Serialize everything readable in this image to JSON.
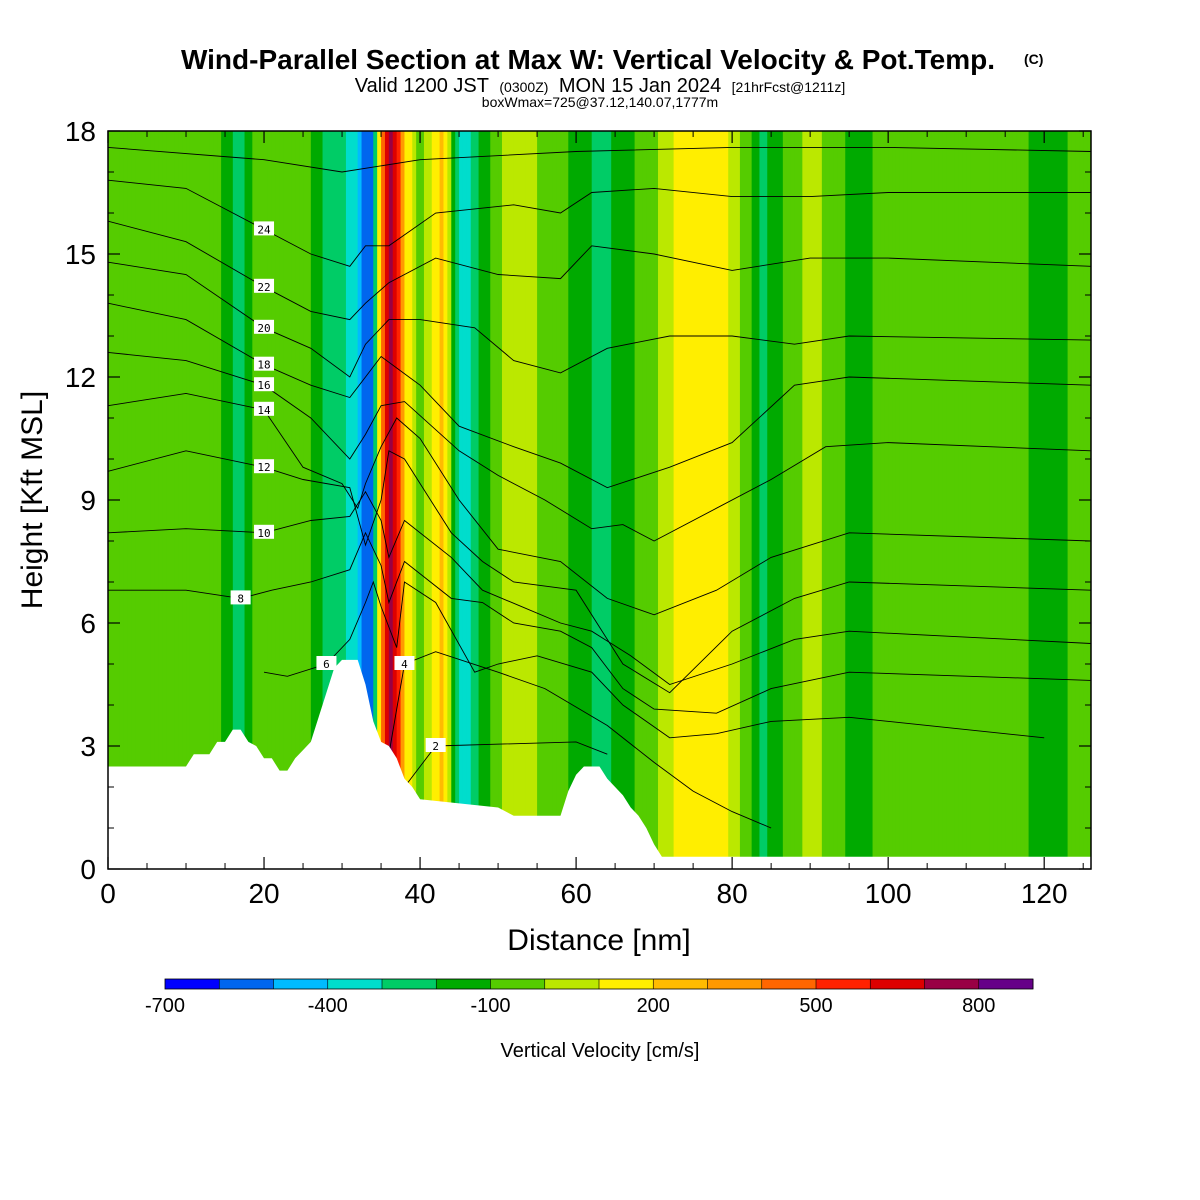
{
  "title": "Wind-Parallel Section at Max W: Vertical Velocity & Pot.Temp.",
  "title_mark": "(C)",
  "subtitle_parts": [
    "Valid 1200 JST",
    "(0300Z)",
    "MON 15 Jan 2024",
    "[21hrFcst@1211z]"
  ],
  "subtitle2": "boxWmax=725@37.12,140.07,1777m",
  "chart_data": {
    "type": "heatmap",
    "xlabel": "Distance [nm]",
    "ylabel": "Height [Kft MSL]",
    "xlim": [
      0,
      126
    ],
    "ylim": [
      0,
      18
    ],
    "xticks": [
      0,
      20,
      40,
      60,
      80,
      100,
      120
    ],
    "yticks": [
      0,
      3,
      6,
      9,
      12,
      15,
      18
    ],
    "colorbar": {
      "label": "Vertical Velocity [cm/s]",
      "min": -700,
      "max": 900,
      "step": 100,
      "tick_values": [
        -700,
        -400,
        -100,
        200,
        500,
        800
      ],
      "colors": [
        "#0000ff",
        "#0066ee",
        "#00bbff",
        "#00ddcc",
        "#00cc66",
        "#00aa00",
        "#55cc00",
        "#bbe800",
        "#ffee00",
        "#ffbb00",
        "#ff9900",
        "#ff6600",
        "#ff2200",
        "#dd0000",
        "#990044",
        "#660088"
      ]
    },
    "terrain_kft": [
      [
        0,
        2.5
      ],
      [
        10,
        2.5
      ],
      [
        11,
        2.8
      ],
      [
        13,
        2.8
      ],
      [
        14,
        3.1
      ],
      [
        15,
        3.1
      ],
      [
        16,
        3.4
      ],
      [
        17,
        3.4
      ],
      [
        18,
        3.1
      ],
      [
        19,
        3.0
      ],
      [
        20,
        2.7
      ],
      [
        21,
        2.7
      ],
      [
        22,
        2.4
      ],
      [
        23,
        2.4
      ],
      [
        24,
        2.7
      ],
      [
        25,
        2.9
      ],
      [
        26,
        3.1
      ],
      [
        27,
        3.7
      ],
      [
        28,
        4.3
      ],
      [
        29,
        4.9
      ],
      [
        30,
        5.1
      ],
      [
        32,
        5.1
      ],
      [
        33,
        4.5
      ],
      [
        34,
        3.6
      ],
      [
        35,
        3.1
      ],
      [
        36,
        3.0
      ],
      [
        37,
        2.7
      ],
      [
        38,
        2.2
      ],
      [
        39,
        2.0
      ],
      [
        40,
        1.7
      ],
      [
        50,
        1.5
      ],
      [
        52,
        1.3
      ],
      [
        58,
        1.3
      ],
      [
        59,
        1.9
      ],
      [
        60,
        2.3
      ],
      [
        61,
        2.5
      ],
      [
        63,
        2.5
      ],
      [
        64,
        2.2
      ],
      [
        65,
        2.0
      ],
      [
        66,
        1.8
      ],
      [
        67,
        1.5
      ],
      [
        68,
        1.3
      ],
      [
        69,
        1.0
      ],
      [
        70,
        0.6
      ],
      [
        71,
        0.3
      ],
      [
        126,
        0.3
      ]
    ],
    "velocity_columns_cms": [
      [
        0,
        -100
      ],
      [
        14,
        -50
      ],
      [
        16,
        -200
      ],
      [
        17,
        -250
      ],
      [
        19,
        -60
      ],
      [
        23,
        -50
      ],
      [
        26,
        -100
      ],
      [
        28,
        -250
      ],
      [
        30,
        -250
      ],
      [
        32,
        -400
      ],
      [
        33,
        -600
      ],
      [
        34,
        -500
      ],
      [
        35,
        300
      ],
      [
        36,
        800
      ],
      [
        37,
        600
      ],
      [
        38,
        200
      ],
      [
        40,
        -60
      ],
      [
        43,
        250
      ],
      [
        44,
        -50
      ],
      [
        45,
        -350
      ],
      [
        46,
        -350
      ],
      [
        48,
        -150
      ],
      [
        52,
        80
      ],
      [
        57,
        -60
      ],
      [
        61,
        -150
      ],
      [
        63,
        -250
      ],
      [
        66,
        -150
      ],
      [
        69,
        -60
      ],
      [
        72,
        80
      ],
      [
        76,
        200
      ],
      [
        79,
        150
      ],
      [
        82,
        -60
      ],
      [
        84,
        -250
      ],
      [
        85,
        -150
      ],
      [
        88,
        -60
      ],
      [
        90,
        40
      ],
      [
        96,
        -150
      ],
      [
        100,
        -50
      ],
      [
        104,
        -60
      ],
      [
        110,
        -30
      ],
      [
        116,
        -60
      ],
      [
        120,
        -150
      ],
      [
        126,
        -50
      ]
    ],
    "theta_contours": [
      {
        "label": "2",
        "points": [
          [
            35,
            1.8
          ],
          [
            38,
            2.0
          ],
          [
            42,
            3.0
          ],
          [
            60,
            3.1
          ],
          [
            64,
            2.8
          ]
        ]
      },
      {
        "label": "4",
        "points": [
          [
            35,
            2.3
          ],
          [
            36,
            2.8
          ],
          [
            38,
            5.0
          ],
          [
            42,
            5.3
          ],
          [
            50,
            4.8
          ],
          [
            56,
            4.4
          ],
          [
            64,
            3.5
          ],
          [
            70,
            2.6
          ],
          [
            75,
            1.9
          ],
          [
            80,
            1.4
          ],
          [
            85,
            1.0
          ]
        ]
      },
      {
        "label": "6",
        "points": [
          [
            20,
            4.8
          ],
          [
            23,
            4.7
          ],
          [
            28,
            5.0
          ],
          [
            31,
            5.6
          ],
          [
            33,
            6.5
          ],
          [
            34,
            7.0
          ],
          [
            35,
            6.4
          ],
          [
            37,
            5.4
          ],
          [
            38,
            7.0
          ],
          [
            42,
            6.5
          ],
          [
            47,
            4.8
          ],
          [
            50,
            5.0
          ],
          [
            55,
            5.2
          ],
          [
            62,
            4.8
          ],
          [
            66,
            4.0
          ],
          [
            72,
            3.2
          ],
          [
            78,
            3.3
          ],
          [
            85,
            3.6
          ],
          [
            95,
            3.7
          ],
          [
            120,
            3.2
          ]
        ]
      },
      {
        "label": "8",
        "points": [
          [
            0,
            6.8
          ],
          [
            10,
            6.8
          ],
          [
            17,
            6.6
          ],
          [
            21,
            6.8
          ],
          [
            26,
            7.0
          ],
          [
            31,
            7.3
          ],
          [
            33,
            8.2
          ],
          [
            35,
            7.4
          ],
          [
            36,
            6.5
          ],
          [
            38,
            7.5
          ],
          [
            44,
            6.6
          ],
          [
            48,
            6.5
          ],
          [
            52,
            6.0
          ],
          [
            58,
            5.8
          ],
          [
            62,
            5.4
          ],
          [
            66,
            4.4
          ],
          [
            70,
            3.9
          ],
          [
            78,
            3.8
          ],
          [
            85,
            4.4
          ],
          [
            95,
            4.8
          ],
          [
            126,
            4.6
          ]
        ]
      },
      {
        "label": "10",
        "points": [
          [
            0,
            8.2
          ],
          [
            10,
            8.3
          ],
          [
            20,
            8.2
          ],
          [
            26,
            8.5
          ],
          [
            31,
            8.6
          ],
          [
            33,
            9.2
          ],
          [
            35,
            8.5
          ],
          [
            36,
            7.6
          ],
          [
            38,
            8.5
          ],
          [
            44,
            7.6
          ],
          [
            48,
            6.8
          ],
          [
            53,
            6.4
          ],
          [
            58,
            6.0
          ],
          [
            62,
            5.8
          ],
          [
            67,
            5.2
          ],
          [
            72,
            4.5
          ],
          [
            80,
            5.0
          ],
          [
            88,
            5.6
          ],
          [
            95,
            5.8
          ],
          [
            126,
            5.5
          ]
        ]
      },
      {
        "label": "12",
        "points": [
          [
            0,
            9.7
          ],
          [
            10,
            10.2
          ],
          [
            20,
            9.8
          ],
          [
            25,
            9.5
          ],
          [
            31,
            9.3
          ],
          [
            33,
            7.9
          ],
          [
            35,
            9.0
          ],
          [
            36,
            10.2
          ],
          [
            38,
            10.0
          ],
          [
            44,
            8.2
          ],
          [
            48,
            7.5
          ],
          [
            52,
            7.0
          ],
          [
            60,
            6.8
          ],
          [
            66,
            5.0
          ],
          [
            72,
            4.3
          ],
          [
            80,
            5.8
          ],
          [
            88,
            6.6
          ],
          [
            95,
            7.0
          ],
          [
            126,
            6.8
          ]
        ]
      },
      {
        "label": "14",
        "points": [
          [
            0,
            11.3
          ],
          [
            10,
            11.6
          ],
          [
            20,
            11.2
          ],
          [
            25,
            9.8
          ],
          [
            30,
            9.4
          ],
          [
            32,
            8.8
          ],
          [
            33,
            9.4
          ],
          [
            35,
            10.3
          ],
          [
            37,
            11.0
          ],
          [
            40,
            10.5
          ],
          [
            45,
            9.0
          ],
          [
            50,
            7.8
          ],
          [
            58,
            7.5
          ],
          [
            64,
            6.6
          ],
          [
            70,
            6.2
          ],
          [
            78,
            6.8
          ],
          [
            85,
            7.6
          ],
          [
            95,
            8.2
          ],
          [
            126,
            8.0
          ]
        ]
      },
      {
        "label": "16",
        "points": [
          [
            0,
            12.6
          ],
          [
            10,
            12.4
          ],
          [
            20,
            11.8
          ],
          [
            26,
            11.0
          ],
          [
            31,
            10.0
          ],
          [
            33,
            10.6
          ],
          [
            35,
            11.3
          ],
          [
            38,
            11.4
          ],
          [
            45,
            10.2
          ],
          [
            50,
            9.6
          ],
          [
            56,
            9.0
          ],
          [
            62,
            8.3
          ],
          [
            66,
            8.4
          ],
          [
            70,
            8.0
          ],
          [
            78,
            8.8
          ],
          [
            85,
            9.5
          ],
          [
            92,
            10.3
          ],
          [
            100,
            10.4
          ],
          [
            126,
            10.2
          ]
        ]
      },
      {
        "label": "18",
        "points": [
          [
            0,
            13.8
          ],
          [
            10,
            13.4
          ],
          [
            20,
            12.3
          ],
          [
            26,
            11.8
          ],
          [
            31,
            11.5
          ],
          [
            33,
            12.0
          ],
          [
            35,
            12.5
          ],
          [
            40,
            11.8
          ],
          [
            45,
            10.8
          ],
          [
            52,
            10.3
          ],
          [
            58,
            9.9
          ],
          [
            64,
            9.3
          ],
          [
            72,
            9.8
          ],
          [
            80,
            10.4
          ],
          [
            88,
            11.8
          ],
          [
            95,
            12.0
          ],
          [
            126,
            11.8
          ]
        ]
      },
      {
        "label": "20",
        "points": [
          [
            0,
            14.8
          ],
          [
            10,
            14.5
          ],
          [
            20,
            13.2
          ],
          [
            26,
            12.7
          ],
          [
            31,
            12.0
          ],
          [
            33,
            12.8
          ],
          [
            36,
            13.4
          ],
          [
            40,
            13.4
          ],
          [
            47,
            13.2
          ],
          [
            52,
            12.4
          ],
          [
            58,
            12.1
          ],
          [
            64,
            12.7
          ],
          [
            72,
            13.0
          ],
          [
            80,
            13.0
          ],
          [
            88,
            12.8
          ],
          [
            95,
            13.0
          ],
          [
            126,
            12.9
          ]
        ]
      },
      {
        "label": "22",
        "points": [
          [
            0,
            15.8
          ],
          [
            10,
            15.3
          ],
          [
            20,
            14.2
          ],
          [
            26,
            13.6
          ],
          [
            31,
            13.4
          ],
          [
            33,
            13.8
          ],
          [
            36,
            14.3
          ],
          [
            42,
            14.9
          ],
          [
            50,
            14.5
          ],
          [
            58,
            14.4
          ],
          [
            62,
            15.2
          ],
          [
            70,
            15.0
          ],
          [
            80,
            14.6
          ],
          [
            90,
            14.9
          ],
          [
            100,
            14.9
          ],
          [
            126,
            14.7
          ]
        ]
      },
      {
        "label": "24",
        "points": [
          [
            0,
            16.8
          ],
          [
            10,
            16.6
          ],
          [
            20,
            15.6
          ],
          [
            26,
            15.0
          ],
          [
            31,
            14.7
          ],
          [
            33,
            15.2
          ],
          [
            36,
            15.2
          ],
          [
            42,
            16.0
          ],
          [
            52,
            16.2
          ],
          [
            58,
            16.0
          ],
          [
            62,
            16.5
          ],
          [
            70,
            16.6
          ],
          [
            80,
            16.4
          ],
          [
            90,
            16.4
          ],
          [
            100,
            16.5
          ],
          [
            126,
            16.5
          ]
        ]
      },
      {
        "label": "",
        "points": [
          [
            0,
            17.6
          ],
          [
            20,
            17.3
          ],
          [
            30,
            17.0
          ],
          [
            40,
            17.3
          ],
          [
            60,
            17.5
          ],
          [
            80,
            17.6
          ],
          [
            100,
            17.6
          ],
          [
            126,
            17.5
          ]
        ]
      }
    ]
  }
}
